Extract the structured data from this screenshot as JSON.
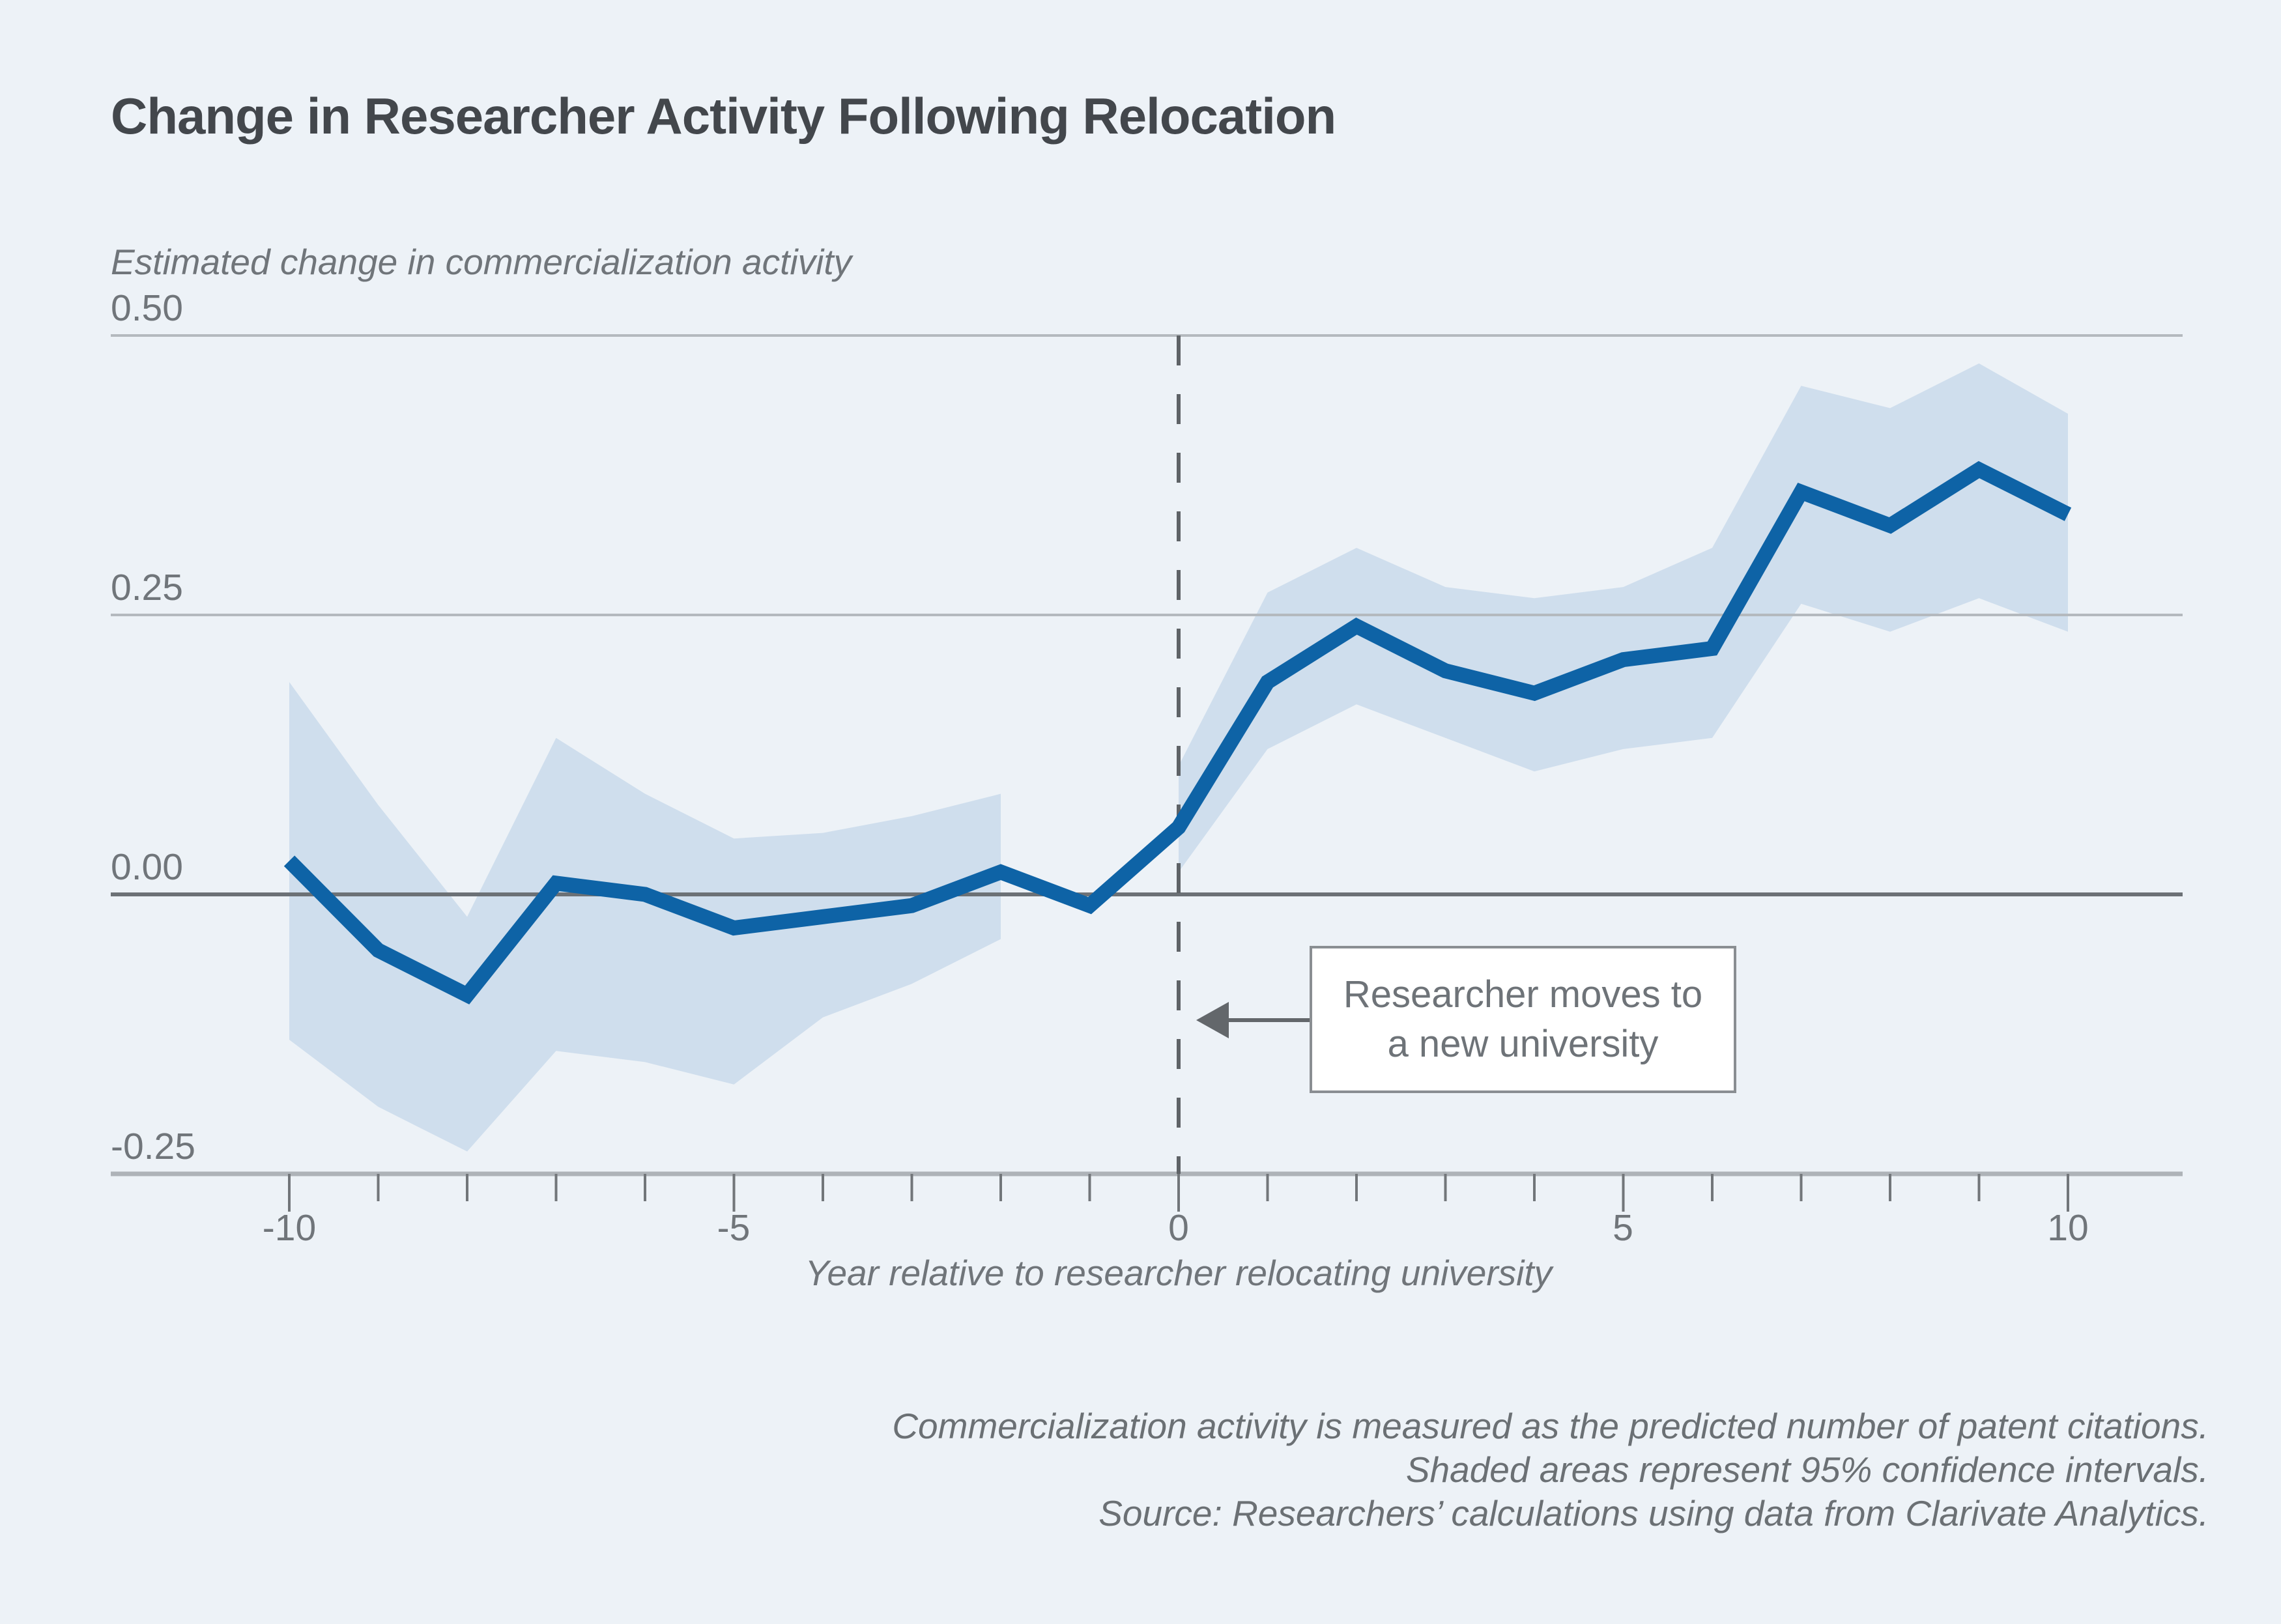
{
  "title": "Change in Researcher Activity Following Relocation",
  "annotation": {
    "line1": "Researcher moves to",
    "line2": "a new university"
  },
  "footnotes": [
    "Commercialization activity is measured as the predicted number of patent citations.",
    "Shaded areas represent 95% confidence intervals.",
    "Source: Researchers’ calculations using data from Clarivate Analytics."
  ],
  "colors": {
    "background": "#edf2f7",
    "band": "#cfdeed",
    "line": "#0e63a6",
    "grid": "#b4b9be",
    "zero_line": "#6c7176",
    "axis_line": "#aeb3b8",
    "dashed_line": "#5f6367",
    "tick": "#72767a",
    "title_text": "#43474c",
    "label_text": "#70757a",
    "annotation_border": "#8a8e92",
    "annotation_bg": "#ffffff",
    "arrow": "#63676b"
  },
  "chart_data": {
    "type": "line",
    "title": "Change in Researcher Activity Following Relocation",
    "xlabel": "Year relative to researcher relocating university",
    "ylabel": "Estimated change in commercialization activity",
    "xlim": [
      -10,
      10
    ],
    "ylim": [
      -0.25,
      0.5
    ],
    "grid": "horizontal",
    "legend": "none",
    "event_line_x": 0,
    "x": [
      -10,
      -9,
      -8,
      -7,
      -6,
      -5,
      -4,
      -3,
      -2,
      -1,
      0,
      1,
      2,
      3,
      4,
      5,
      6,
      7,
      8,
      9,
      10
    ],
    "series": [
      {
        "name": "Estimated change in commercialization activity",
        "values": [
          0.03,
          -0.05,
          -0.09,
          0.01,
          0.0,
          -0.03,
          -0.02,
          -0.01,
          0.02,
          -0.01,
          0.06,
          0.19,
          0.24,
          0.2,
          0.18,
          0.21,
          0.22,
          0.36,
          0.33,
          0.38,
          0.34
        ]
      }
    ],
    "ci_segments": [
      {
        "x": [
          -10,
          -9,
          -8,
          -7,
          -6,
          -5,
          -4,
          -3,
          -2
        ],
        "upper": [
          0.19,
          0.08,
          -0.02,
          0.14,
          0.09,
          0.05,
          0.055,
          0.07,
          0.09
        ],
        "lower": [
          -0.13,
          -0.19,
          -0.23,
          -0.14,
          -0.15,
          -0.17,
          -0.11,
          -0.08,
          -0.04
        ]
      },
      {
        "x": [
          0,
          1,
          2,
          3,
          4,
          5,
          6,
          7,
          8,
          9,
          10
        ],
        "upper": [
          0.115,
          0.27,
          0.31,
          0.275,
          0.265,
          0.275,
          0.31,
          0.455,
          0.435,
          0.475,
          0.43
        ],
        "lower": [
          0.02,
          0.13,
          0.17,
          0.14,
          0.11,
          0.13,
          0.14,
          0.26,
          0.235,
          0.265,
          0.235
        ]
      }
    ],
    "y_ticks": [
      {
        "label": "0.50",
        "value": 0.5
      },
      {
        "label": "0.25",
        "value": 0.25
      },
      {
        "label": "0.00",
        "value": 0.0
      },
      {
        "label": "-0.25",
        "value": -0.25
      }
    ],
    "x_ticks": [
      {
        "label": "-10",
        "value": -10
      },
      {
        "label": "-5",
        "value": -5
      },
      {
        "label": "0",
        "value": 0
      },
      {
        "label": "5",
        "value": 5
      },
      {
        "label": "10",
        "value": 10
      }
    ]
  }
}
